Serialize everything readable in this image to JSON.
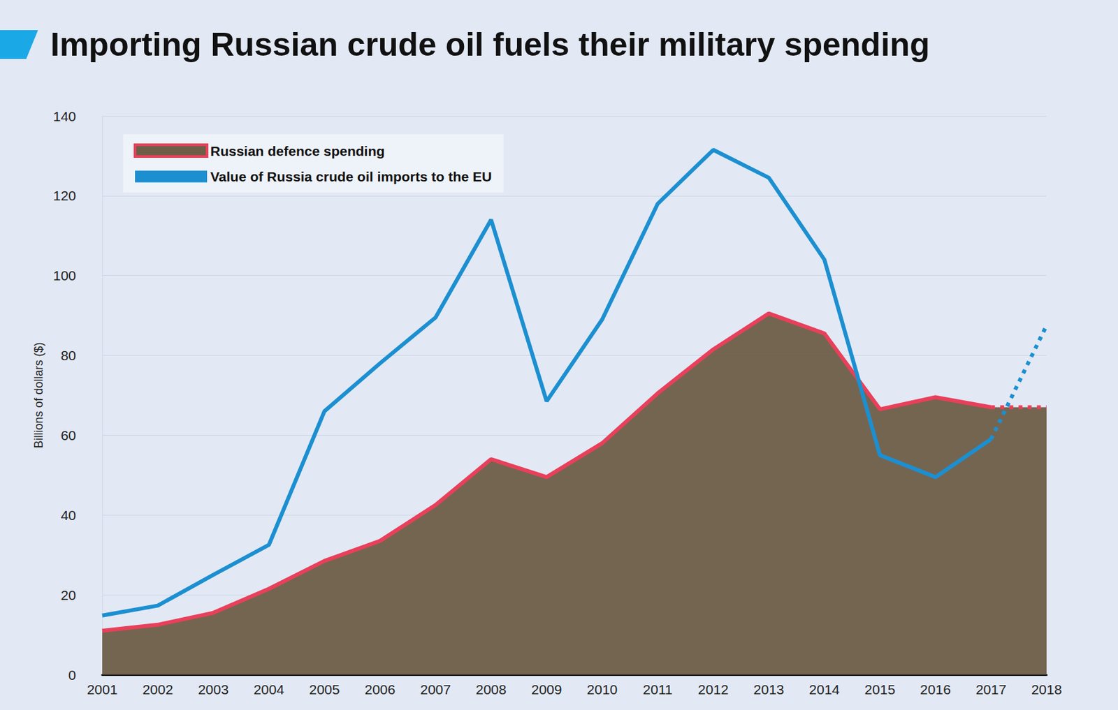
{
  "chart_data": {
    "type": "line",
    "title": "Importing Russian crude oil fuels their military spending",
    "y_label": "Billions of dollars ($)",
    "categories": [
      "2001",
      "2002",
      "2003",
      "2004",
      "2005",
      "2006",
      "2007",
      "2008",
      "2009",
      "2010",
      "2011",
      "2012",
      "2013",
      "2014",
      "2015",
      "2016",
      "2017",
      "2018"
    ],
    "series": [
      {
        "name": "Russian defence spending",
        "type": "area",
        "color": "#e8405a",
        "line_style": "solid",
        "values": [
          11,
          12.5,
          15.5,
          21.5,
          28.5,
          33.5,
          42.5,
          54,
          49.5,
          58,
          70.5,
          81.5,
          90.5,
          85.5,
          66.5,
          69.5,
          67,
          67
        ]
      },
      {
        "name": "Value of Russia crude oil imports to the EU",
        "type": "line",
        "color": "#1c8fd0",
        "line_style": "solid",
        "values": [
          14.8,
          17.3,
          25,
          32.5,
          66,
          78,
          89.5,
          114,
          68.5,
          89,
          118,
          131.5,
          124.5,
          104,
          55,
          49.5,
          59,
          87.5
        ]
      }
    ],
    "ylim": [
      0,
      140
    ],
    "yticks": [
      0,
      20,
      40,
      60,
      80,
      100,
      120,
      140
    ],
    "grid": true,
    "legend": "top-left"
  }
}
